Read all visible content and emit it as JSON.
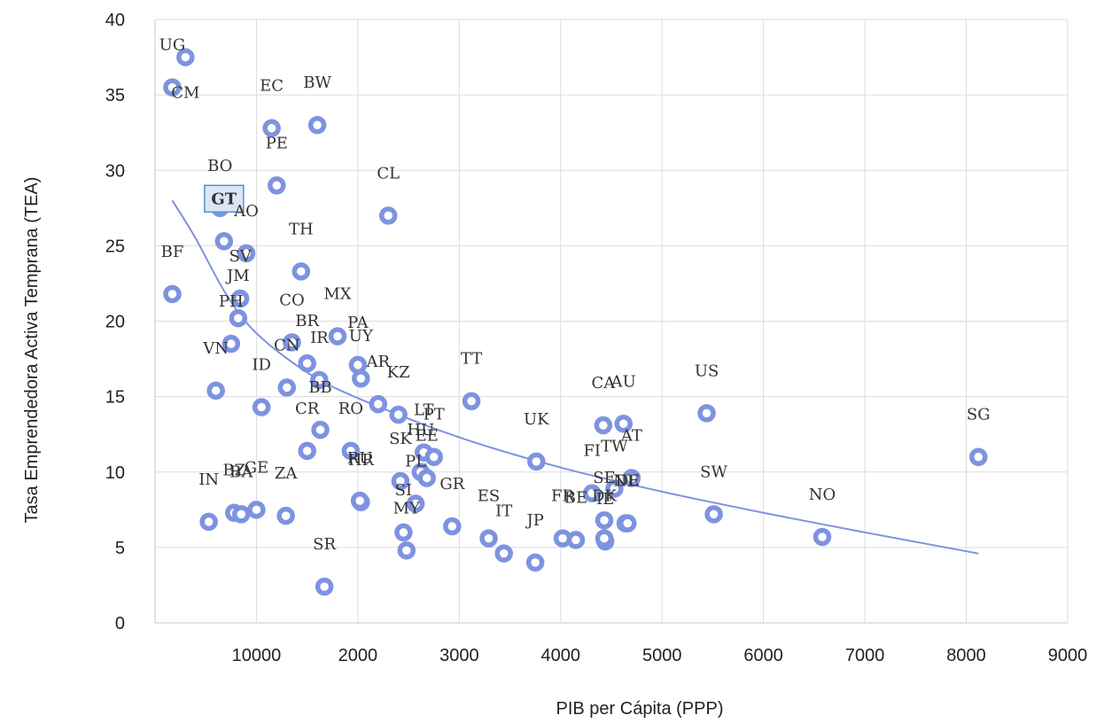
{
  "chart_data": {
    "type": "scatter",
    "title": "",
    "xlabel": "PIB per Cápita (PPP)",
    "ylabel": "Tasa Emprendedora Activa Temprana (TEA)",
    "ylim": [
      0,
      40
    ],
    "x_tick_labels": [
      "10000",
      "2000",
      "3000",
      "4000",
      "5000",
      "6000",
      "7000",
      "8000",
      "9000"
    ],
    "y_tick_labels": [
      "0",
      "5",
      "10",
      "15",
      "20",
      "25",
      "30",
      "35",
      "40"
    ],
    "grid": true,
    "marker_color": "#7e93e0",
    "trend_color": "#7e93e0",
    "highlight_color": "#5b8fc7",
    "points": [
      {
        "label": "CM",
        "x": 300,
        "y": 37.5
      },
      {
        "label": "UG",
        "x": 170,
        "y": 35.5
      },
      {
        "label": "EC",
        "x": 1150,
        "y": 32.8
      },
      {
        "label": "BW",
        "x": 1600,
        "y": 33.0
      },
      {
        "label": "BO",
        "x": 640,
        "y": 27.5
      },
      {
        "label": "PE",
        "x": 1200,
        "y": 29.0
      },
      {
        "label": "CL",
        "x": 2300,
        "y": 27.0
      },
      {
        "label": "GT",
        "x": 680,
        "y": 25.3,
        "highlight": true
      },
      {
        "label": "AO",
        "x": 900,
        "y": 24.5
      },
      {
        "label": "TH",
        "x": 1440,
        "y": 23.3
      },
      {
        "label": "BF",
        "x": 170,
        "y": 21.8
      },
      {
        "label": "SV",
        "x": 840,
        "y": 21.5
      },
      {
        "label": "JM",
        "x": 820,
        "y": 20.2
      },
      {
        "label": "CO",
        "x": 1350,
        "y": 18.6
      },
      {
        "label": "MX",
        "x": 1800,
        "y": 19.0
      },
      {
        "label": "BR",
        "x": 1500,
        "y": 17.2
      },
      {
        "label": "PA",
        "x": 2000,
        "y": 17.1
      },
      {
        "label": "UY",
        "x": 2030,
        "y": 16.2
      },
      {
        "label": "PH",
        "x": 750,
        "y": 18.5
      },
      {
        "label": "IR",
        "x": 1620,
        "y": 16.1
      },
      {
        "label": "VN",
        "x": 600,
        "y": 15.4
      },
      {
        "label": "CN",
        "x": 1300,
        "y": 15.6
      },
      {
        "label": "ID",
        "x": 1050,
        "y": 14.3
      },
      {
        "label": "AR",
        "x": 2200,
        "y": 14.5
      },
      {
        "label": "KZ",
        "x": 2400,
        "y": 13.8
      },
      {
        "label": "TT",
        "x": 3120,
        "y": 14.7
      },
      {
        "label": "BB",
        "x": 1630,
        "y": 12.8
      },
      {
        "label": "CR",
        "x": 1500,
        "y": 11.4
      },
      {
        "label": "RO",
        "x": 1930,
        "y": 11.4
      },
      {
        "label": "LT",
        "x": 2650,
        "y": 11.3
      },
      {
        "label": "PT",
        "x": 2750,
        "y": 11.0
      },
      {
        "label": "HU",
        "x": 2620,
        "y": 10.0
      },
      {
        "label": "EE",
        "x": 2680,
        "y": 9.6
      },
      {
        "label": "SK",
        "x": 2420,
        "y": 9.4
      },
      {
        "label": "HR",
        "x": 2030,
        "y": 8.0
      },
      {
        "label": "PL",
        "x": 2570,
        "y": 7.9
      },
      {
        "label": "GR",
        "x": 2930,
        "y": 6.4
      },
      {
        "label": "SI",
        "x": 2450,
        "y": 6.0
      },
      {
        "label": "MY",
        "x": 2480,
        "y": 4.8
      },
      {
        "label": "ES",
        "x": 3290,
        "y": 5.6
      },
      {
        "label": "IT",
        "x": 3440,
        "y": 4.6
      },
      {
        "label": "JP",
        "x": 3750,
        "y": 4.0
      },
      {
        "label": "FR",
        "x": 4020,
        "y": 5.6
      },
      {
        "label": "BE",
        "x": 4150,
        "y": 5.5
      },
      {
        "label": "FI",
        "x": 4310,
        "y": 8.6
      },
      {
        "label": "SE",
        "x": 4430,
        "y": 6.8
      },
      {
        "label": "UK",
        "x": 3760,
        "y": 10.7
      },
      {
        "label": "TW",
        "x": 4530,
        "y": 8.9
      },
      {
        "label": "AT",
        "x": 4700,
        "y": 9.6
      },
      {
        "label": "NL",
        "x": 4640,
        "y": 6.6
      },
      {
        "label": "IE",
        "x": 4440,
        "y": 5.4
      },
      {
        "label": "DE",
        "x": 4660,
        "y": 6.6
      },
      {
        "label": "DK",
        "x": 4430,
        "y": 5.6
      },
      {
        "label": "CA",
        "x": 4420,
        "y": 13.1
      },
      {
        "label": "AU",
        "x": 4620,
        "y": 13.2
      },
      {
        "label": "US",
        "x": 5440,
        "y": 13.9
      },
      {
        "label": "SW",
        "x": 5510,
        "y": 7.2
      },
      {
        "label": "NO",
        "x": 6580,
        "y": 5.7
      },
      {
        "label": "SG",
        "x": 8120,
        "y": 11.0
      },
      {
        "label": "IN",
        "x": 530,
        "y": 6.7
      },
      {
        "label": "BZ",
        "x": 780,
        "y": 7.3
      },
      {
        "label": "BA",
        "x": 850,
        "y": 7.2
      },
      {
        "label": "GE",
        "x": 1000,
        "y": 7.5
      },
      {
        "label": "ZA",
        "x": 1290,
        "y": 7.1
      },
      {
        "label": "SR",
        "x": 1670,
        "y": 2.4
      },
      {
        "label": "RU",
        "x": 2020,
        "y": 8.1
      }
    ],
    "trendline": [
      {
        "x": 170,
        "y": 28.0
      },
      {
        "x": 400,
        "y": 25.5
      },
      {
        "x": 700,
        "y": 21.8
      },
      {
        "x": 1000,
        "y": 19.2
      },
      {
        "x": 1500,
        "y": 16.6
      },
      {
        "x": 2000,
        "y": 14.9
      },
      {
        "x": 3000,
        "y": 12.3
      },
      {
        "x": 4000,
        "y": 10.3
      },
      {
        "x": 5000,
        "y": 8.7
      },
      {
        "x": 6000,
        "y": 7.3
      },
      {
        "x": 7000,
        "y": 6.0
      },
      {
        "x": 8120,
        "y": 4.6
      }
    ]
  }
}
